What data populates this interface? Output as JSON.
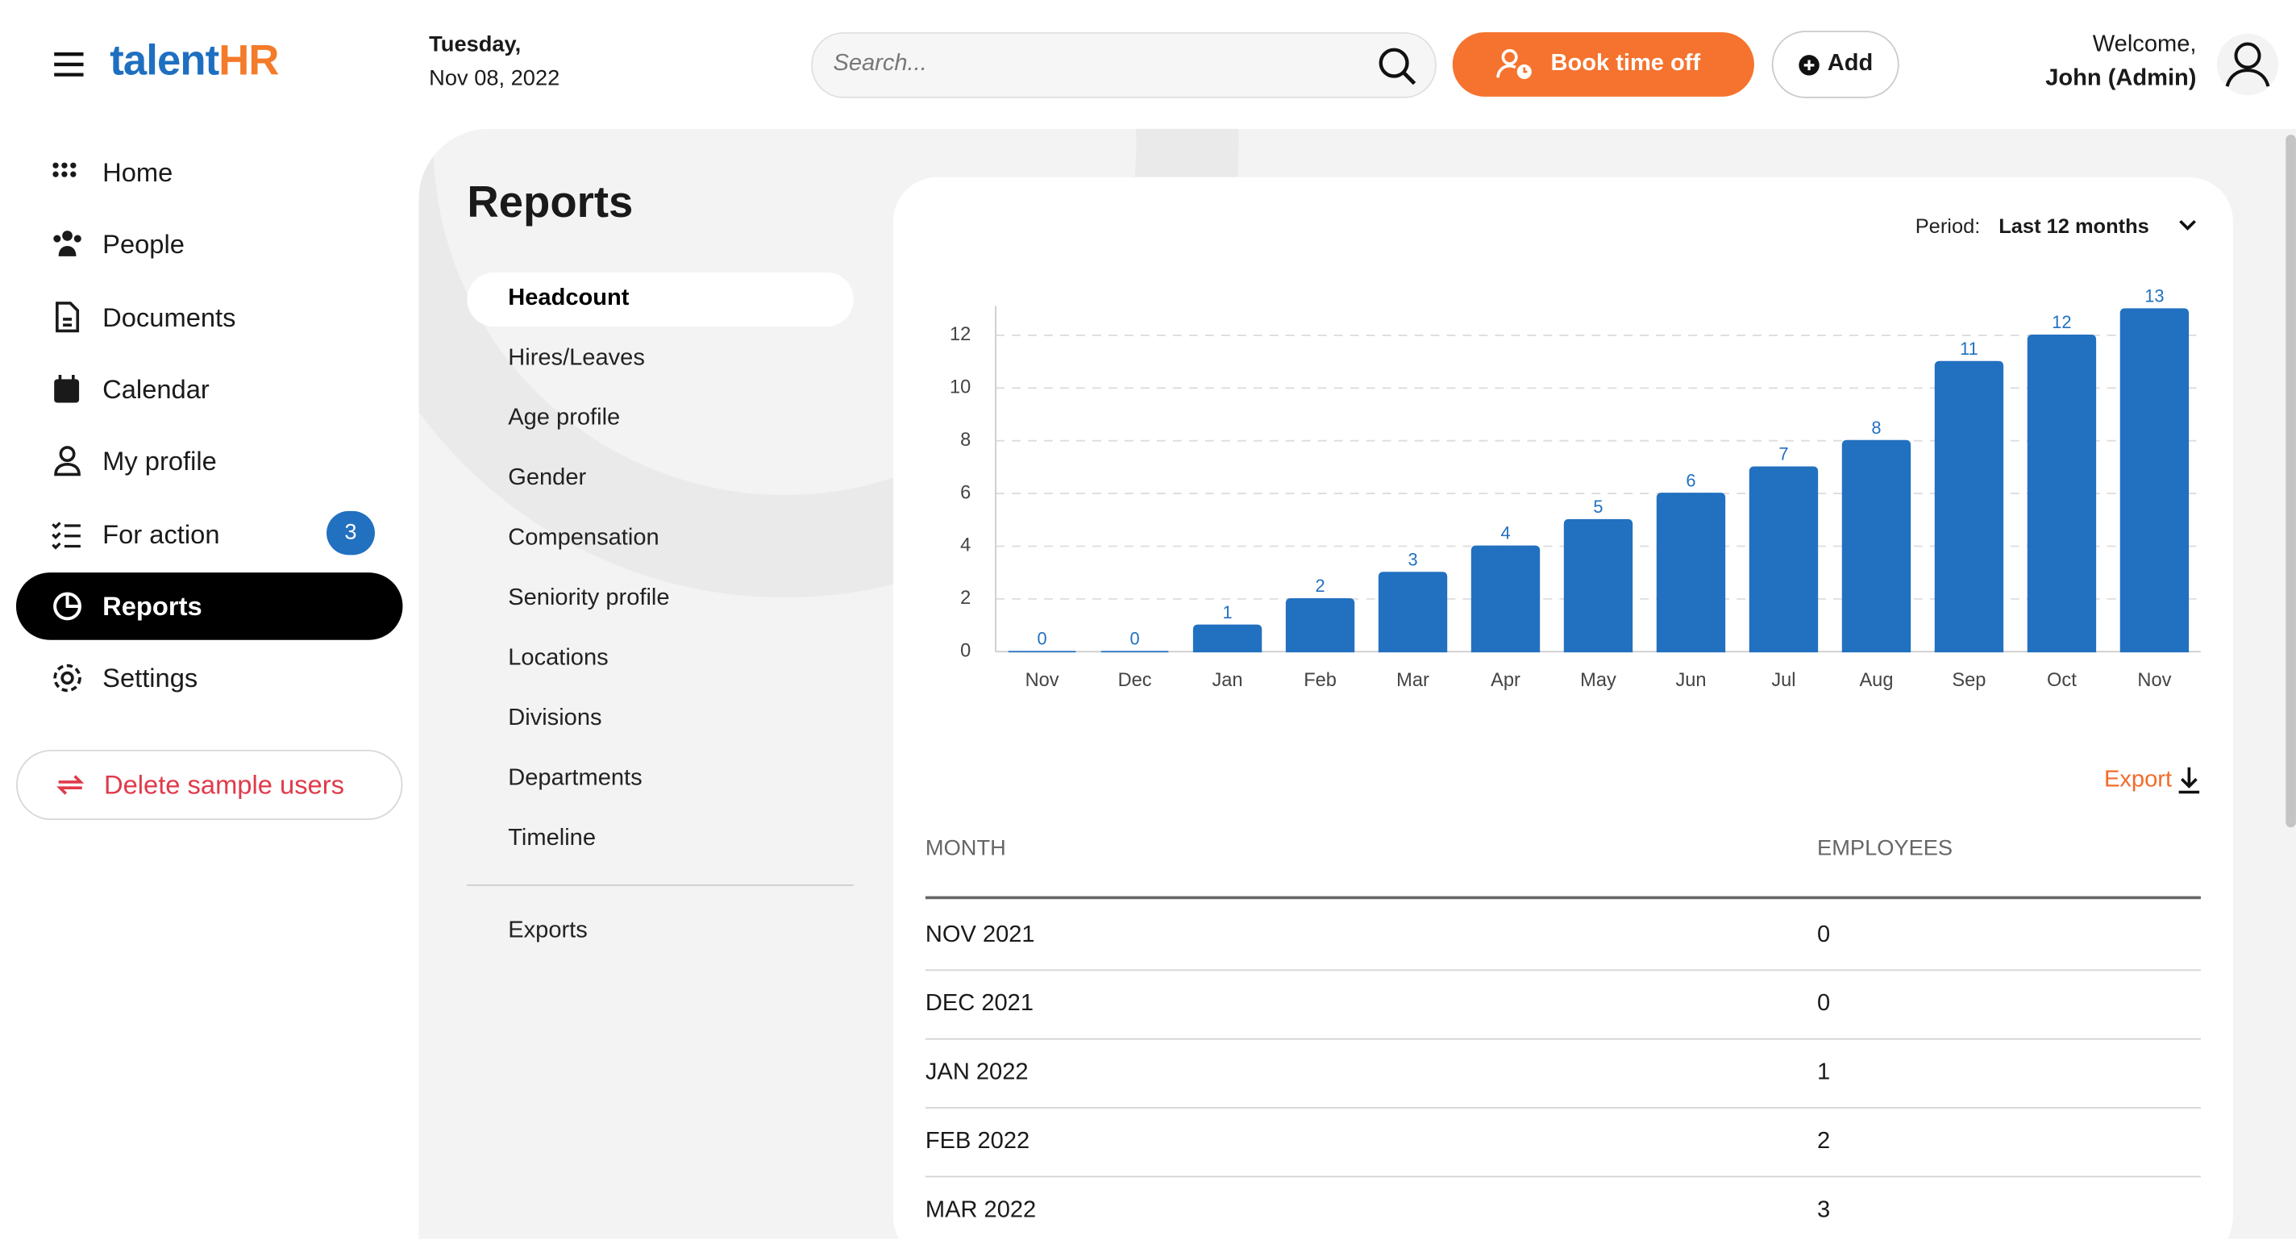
{
  "header": {
    "logo_text": "talent",
    "logo_accent": "HR",
    "date_day": "Tuesday,",
    "date": "Nov 08, 2022",
    "search_placeholder": "Search...",
    "book_button": "Book time off",
    "add_button": "Add",
    "welcome": "Welcome,",
    "user": "John (Admin)"
  },
  "sidebar": {
    "items": [
      "Home",
      "People",
      "Documents",
      "Calendar",
      "My profile",
      "For action",
      "Reports",
      "Settings"
    ],
    "badge": "3",
    "delete_button": "Delete sample users"
  },
  "reports": {
    "title": "Reports",
    "menu": [
      "Headcount",
      "Hires/Leaves",
      "Age profile",
      "Gender",
      "Compensation",
      "Seniority profile",
      "Locations",
      "Divisions",
      "Departments",
      "Timeline"
    ],
    "exports": "Exports"
  },
  "chart_data": {
    "type": "bar",
    "period_label": "Period:",
    "period_value": "Last 12 months",
    "categories": [
      "Nov",
      "Dec",
      "Jan",
      "Feb",
      "Mar",
      "Apr",
      "May",
      "Jun",
      "Jul",
      "Aug",
      "Sep",
      "Oct",
      "Nov"
    ],
    "values": [
      0,
      0,
      1,
      2,
      3,
      4,
      5,
      6,
      7,
      8,
      11,
      12,
      13
    ],
    "color": "#2270c0",
    "ylim": [
      0,
      13
    ],
    "yticks": [
      0,
      2,
      4,
      6,
      8,
      10,
      12
    ],
    "grid": true
  },
  "export": "Export",
  "table": {
    "columns": [
      "MONTH",
      "EMPLOYEES"
    ],
    "rows": [
      [
        "NOV 2021",
        "0"
      ],
      [
        "DEC 2021",
        "0"
      ],
      [
        "JAN 2022",
        "1"
      ],
      [
        "FEB 2022",
        "2"
      ],
      [
        "MAR 2022",
        "3"
      ]
    ]
  }
}
